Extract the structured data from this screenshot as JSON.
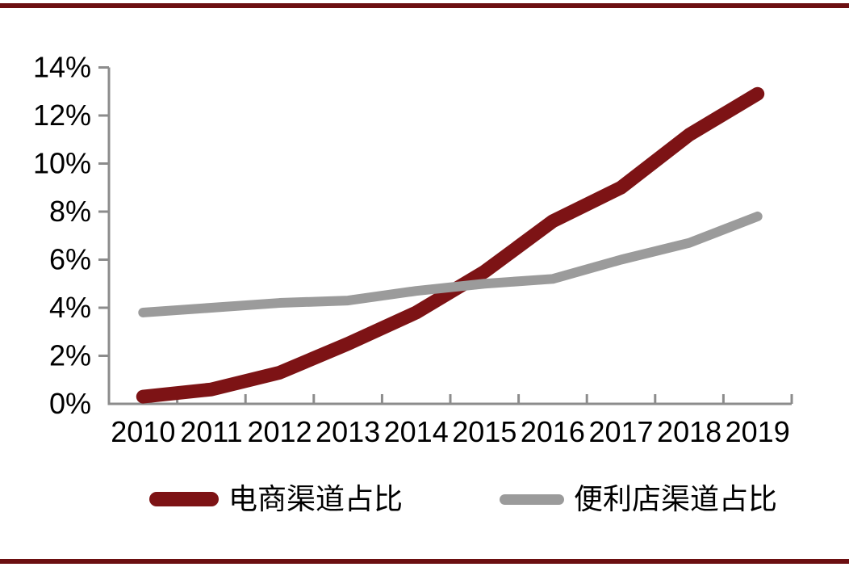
{
  "page": {
    "background_color": "#ffffff",
    "accent_bar_color": "#6C0F11"
  },
  "chart_data": {
    "type": "line",
    "title": "",
    "xlabel": "",
    "ylabel": "",
    "categories": [
      "2010",
      "2011",
      "2012",
      "2013",
      "2014",
      "2015",
      "2016",
      "2017",
      "2018",
      "2019"
    ],
    "series": [
      {
        "name": "电商渠道占比",
        "color": "#7D1315",
        "line_width": 17,
        "values": [
          0.3,
          0.6,
          1.3,
          2.5,
          3.8,
          5.5,
          7.6,
          9.0,
          11.2,
          12.9
        ]
      },
      {
        "name": "便利店渠道占比",
        "color": "#9B9B9B",
        "line_width": 12,
        "values": [
          3.8,
          4.0,
          4.2,
          4.3,
          4.7,
          5.0,
          5.2,
          6.0,
          6.7,
          7.8
        ]
      }
    ],
    "ylim": [
      0,
      14
    ],
    "y_tick_step": 2,
    "y_tick_labels": [
      "0%",
      "2%",
      "4%",
      "6%",
      "8%",
      "10%",
      "12%",
      "14%"
    ],
    "grid": false,
    "axis_color": "#8C8C8C",
    "tick_label_color": "#000000",
    "legend_position": "bottom"
  }
}
